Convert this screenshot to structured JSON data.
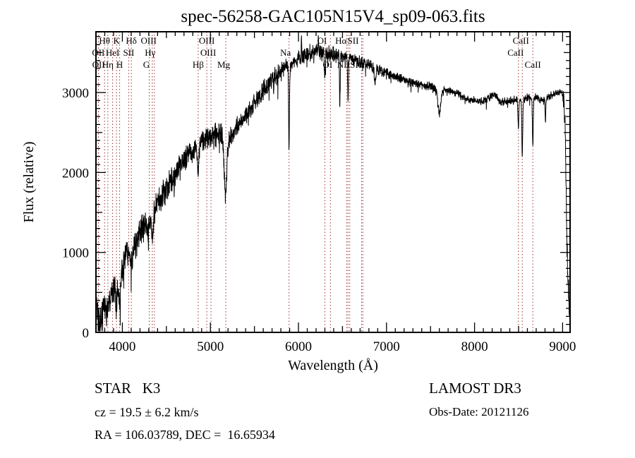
{
  "header": {
    "title": "spec-56258-GAC105N15V4_sp09-063.fits"
  },
  "chart_data": {
    "type": "line",
    "title": "spec-56258-GAC105N15V4_sp09-063.fits",
    "xlabel": "Wavelength (Å)",
    "ylabel": "Flux (relative)",
    "xlim": [
      3700,
      9085
    ],
    "ylim": [
      0,
      3760
    ],
    "x_ticks": [
      4000,
      5000,
      6000,
      7000,
      8000,
      9000
    ],
    "y_ticks": [
      0,
      1000,
      2000,
      3000
    ],
    "x_minor_step": 100,
    "y_minor_step": 100,
    "grid": false,
    "colors": {
      "trace": "#000000",
      "marker_line": "#993333",
      "frame": "#000000",
      "background": "#ffffff"
    },
    "series": [
      {
        "name": "spectrum",
        "envelope": [
          [
            3700,
            300
          ],
          [
            3715,
            220
          ],
          [
            3730,
            160
          ],
          [
            3745,
            140
          ],
          [
            3760,
            190
          ],
          [
            3775,
            260
          ],
          [
            3790,
            340
          ],
          [
            3805,
            300
          ],
          [
            3820,
            240
          ],
          [
            3835,
            290
          ],
          [
            3850,
            380
          ],
          [
            3865,
            450
          ],
          [
            3880,
            520
          ],
          [
            3900,
            570
          ],
          [
            3915,
            600
          ],
          [
            3930,
            540
          ],
          [
            3945,
            640
          ],
          [
            3960,
            590
          ],
          [
            3975,
            660
          ],
          [
            3990,
            730
          ],
          [
            4010,
            830
          ],
          [
            4030,
            950
          ],
          [
            4050,
            1060
          ],
          [
            4065,
            960
          ],
          [
            4080,
            1010
          ],
          [
            4100,
            990
          ],
          [
            4125,
            1060
          ],
          [
            4150,
            1120
          ],
          [
            4175,
            1190
          ],
          [
            4200,
            1270
          ],
          [
            4230,
            1330
          ],
          [
            4260,
            1380
          ],
          [
            4290,
            1330
          ],
          [
            4320,
            1380
          ],
          [
            4350,
            1440
          ],
          [
            4380,
            1560
          ],
          [
            4420,
            1650
          ],
          [
            4460,
            1730
          ],
          [
            4500,
            1810
          ],
          [
            4550,
            1900
          ],
          [
            4600,
            1980
          ],
          [
            4650,
            2060
          ],
          [
            4700,
            2140
          ],
          [
            4750,
            2210
          ],
          [
            4800,
            2280
          ],
          [
            4850,
            2300
          ],
          [
            4900,
            2380
          ],
          [
            4950,
            2430
          ],
          [
            5000,
            2450
          ],
          [
            5050,
            2470
          ],
          [
            5100,
            2470
          ],
          [
            5140,
            2430
          ],
          [
            5180,
            2400
          ],
          [
            5220,
            2420
          ],
          [
            5260,
            2510
          ],
          [
            5300,
            2570
          ],
          [
            5350,
            2650
          ],
          [
            5400,
            2720
          ],
          [
            5450,
            2800
          ],
          [
            5500,
            2880
          ],
          [
            5550,
            2950
          ],
          [
            5600,
            3020
          ],
          [
            5650,
            3090
          ],
          [
            5700,
            3150
          ],
          [
            5750,
            3210
          ],
          [
            5800,
            3270
          ],
          [
            5850,
            3310
          ],
          [
            5900,
            3340
          ],
          [
            5950,
            3390
          ],
          [
            6000,
            3430
          ],
          [
            6050,
            3460
          ],
          [
            6100,
            3490
          ],
          [
            6150,
            3510
          ],
          [
            6200,
            3520
          ],
          [
            6250,
            3510
          ],
          [
            6300,
            3490
          ],
          [
            6350,
            3480
          ],
          [
            6400,
            3470
          ],
          [
            6450,
            3460
          ],
          [
            6500,
            3450
          ],
          [
            6550,
            3440
          ],
          [
            6600,
            3430
          ],
          [
            6650,
            3410
          ],
          [
            6700,
            3390
          ],
          [
            6750,
            3370
          ],
          [
            6800,
            3350
          ],
          [
            6850,
            3320
          ],
          [
            6900,
            3300
          ],
          [
            6950,
            3270
          ],
          [
            7000,
            3250
          ],
          [
            7050,
            3220
          ],
          [
            7100,
            3200
          ],
          [
            7150,
            3180
          ],
          [
            7200,
            3160
          ],
          [
            7250,
            3140
          ],
          [
            7300,
            3130
          ],
          [
            7350,
            3110
          ],
          [
            7400,
            3100
          ],
          [
            7450,
            3080
          ],
          [
            7500,
            3070
          ],
          [
            7550,
            3030
          ],
          [
            7600,
            2990
          ],
          [
            7650,
            3040
          ],
          [
            7700,
            3030
          ],
          [
            7750,
            3010
          ],
          [
            7800,
            3000
          ],
          [
            7850,
            2960
          ],
          [
            7900,
            2930
          ],
          [
            7950,
            2910
          ],
          [
            8000,
            2900
          ],
          [
            8050,
            2890
          ],
          [
            8100,
            2890
          ],
          [
            8150,
            2930
          ],
          [
            8200,
            2970
          ],
          [
            8230,
            2990
          ],
          [
            8270,
            2900
          ],
          [
            8300,
            2880
          ],
          [
            8350,
            2890
          ],
          [
            8400,
            2900
          ],
          [
            8450,
            2920
          ],
          [
            8500,
            2900
          ],
          [
            8550,
            2900
          ],
          [
            8600,
            2940
          ],
          [
            8650,
            2930
          ],
          [
            8700,
            2950
          ],
          [
            8750,
            2900
          ],
          [
            8800,
            2920
          ],
          [
            8850,
            2950
          ],
          [
            8900,
            2980
          ],
          [
            8950,
            3000
          ],
          [
            9000,
            2990
          ],
          [
            9015,
            2900
          ],
          [
            9030,
            2500
          ],
          [
            9045,
            1400
          ],
          [
            9060,
            700
          ],
          [
            9075,
            350
          ],
          [
            9085,
            250
          ]
        ]
      }
    ],
    "absorption_dips": [
      [
        3934,
        260,
        8
      ],
      [
        3969,
        250,
        8
      ],
      [
        4102,
        180,
        8
      ],
      [
        4340,
        200,
        8
      ],
      [
        4861,
        300,
        9
      ],
      [
        5172,
        700,
        14
      ],
      [
        5893,
        950,
        5
      ],
      [
        6300,
        350,
        4
      ],
      [
        6470,
        600,
        4
      ],
      [
        6563,
        500,
        5
      ],
      [
        6870,
        220,
        8
      ],
      [
        7600,
        260,
        14
      ],
      [
        8498,
        330,
        5
      ],
      [
        8542,
        700,
        5
      ],
      [
        8662,
        580,
        5
      ],
      [
        8805,
        280,
        4
      ]
    ],
    "emission_spikes": [
      [
        6035,
        230,
        2.5
      ],
      [
        6225,
        170,
        3
      ]
    ],
    "noise_bands": [
      [
        3700,
        4000,
        150
      ],
      [
        4000,
        4600,
        140
      ],
      [
        4600,
        5200,
        115
      ],
      [
        5200,
        5900,
        95
      ],
      [
        5900,
        6500,
        80
      ],
      [
        6500,
        7000,
        60
      ],
      [
        7000,
        7600,
        45
      ],
      [
        7600,
        9000,
        38
      ],
      [
        9000,
        9085,
        120
      ]
    ],
    "line_markers": [
      {
        "wavelength": 3727,
        "label": "OII",
        "row": 2,
        "dx": 0
      },
      {
        "wavelength": 3729,
        "label": "OII",
        "row": 3,
        "dx": 0
      },
      {
        "wavelength": 3798,
        "label": "Hθ",
        "row": 1,
        "dx": 0
      },
      {
        "wavelength": 3835,
        "label": "Hη",
        "row": 3,
        "dx": 0
      },
      {
        "wavelength": 3889,
        "label": "HeI",
        "row": 2,
        "dx": 0
      },
      {
        "wavelength": 3934,
        "label": "K",
        "row": 1,
        "dx": 0
      },
      {
        "wavelength": 3969,
        "label": "H",
        "row": 3,
        "dx": 0
      },
      {
        "wavelength": 4072,
        "label": "SII",
        "row": 2,
        "dx": 0
      },
      {
        "wavelength": 4102,
        "label": "Hδ",
        "row": 1,
        "dx": 0
      },
      {
        "wavelength": 4305,
        "label": "G",
        "row": 3,
        "dx": -4
      },
      {
        "wavelength": 4340,
        "label": "Hγ",
        "row": 2,
        "dx": -3
      },
      {
        "wavelength": 4363,
        "label": "OIII",
        "row": 1,
        "dx": -8
      },
      {
        "wavelength": 4861,
        "label": "Hβ",
        "row": 3,
        "dx": 0
      },
      {
        "wavelength": 4959,
        "label": "OIII",
        "row": 1,
        "dx": 0
      },
      {
        "wavelength": 5007,
        "label": "OIII",
        "row": 2,
        "dx": -4
      },
      {
        "wavelength": 5175,
        "label": "Mg",
        "row": 3,
        "dx": -3
      },
      {
        "wavelength": 5893,
        "label": "Na",
        "row": 2,
        "dx": -5
      },
      {
        "wavelength": 6300,
        "label": "OI",
        "row": 1,
        "dx": -4
      },
      {
        "wavelength": 6363,
        "label": "OI",
        "row": 3,
        "dx": -4
      },
      {
        "wavelength": 6548,
        "label": "",
        "row": 1,
        "dx": 0
      },
      {
        "wavelength": 6563,
        "label": "Hα",
        "row": 1,
        "dx": -10
      },
      {
        "wavelength": 6583,
        "label": "NII",
        "row": 3,
        "dx": -9
      },
      {
        "wavelength": 6717,
        "label": "SII",
        "row": 1,
        "dx": -12
      },
      {
        "wavelength": 6731,
        "label": "SII",
        "row": 3,
        "dx": -10
      },
      {
        "wavelength": 8498,
        "label": "CaII",
        "row": 2,
        "dx": -4
      },
      {
        "wavelength": 8542,
        "label": "CaII",
        "row": 1,
        "dx": -2
      },
      {
        "wavelength": 8662,
        "label": "CaII",
        "row": 3,
        "dx": 0
      }
    ]
  },
  "annotations": {
    "class_label": "STAR   K3",
    "cz_line": "cz = 19.5 ± 6.2 km/s",
    "radec_line": "RA = 106.03789, DEC =  16.65934",
    "survey": "LAMOST DR3",
    "obs_date": "Obs-Date: 20121126"
  }
}
